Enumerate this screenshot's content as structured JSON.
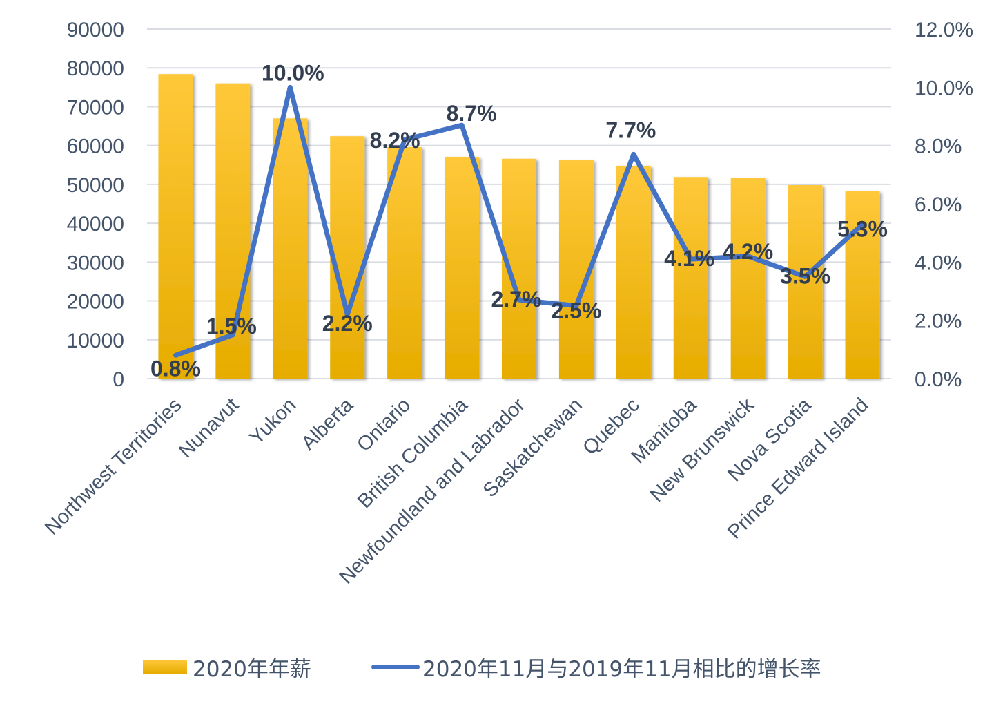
{
  "chart_data": {
    "type": "bar+line",
    "title": "",
    "xlabel": "",
    "ylabel": "",
    "categories": [
      "Northwest Territories",
      "Nunavut",
      "Yukon",
      "Alberta",
      "Ontario",
      "British Columbia",
      "Newfoundland and Labrador",
      "Saskatchewan",
      "Quebec",
      "Manitoba",
      "New Brunswick",
      "Nova Scotia",
      "Prince Edward Island"
    ],
    "series": [
      {
        "name": "2020年年薪",
        "type": "bar",
        "axis": "left",
        "color": "#ffc000",
        "values": [
          78400,
          76000,
          67000,
          62400,
          59600,
          57100,
          56600,
          56200,
          54800,
          51900,
          51600,
          49800,
          48200
        ]
      },
      {
        "name": "2020年11月与2019年11月相比的增长率",
        "type": "line",
        "axis": "right",
        "color": "#4472c4",
        "values": [
          0.8,
          1.5,
          10.0,
          2.2,
          8.2,
          8.7,
          2.7,
          2.5,
          7.7,
          4.1,
          4.2,
          3.5,
          5.3
        ],
        "labels": [
          "0.8%",
          "1.5%",
          "10.0%",
          "2.2%",
          "8.2%",
          "8.7%",
          "2.7%",
          "2.5%",
          "7.7%",
          "4.1%",
          "4.2%",
          "3.5%",
          "5.3%"
        ]
      }
    ],
    "left_axis": {
      "ylim": [
        0,
        90000
      ],
      "ticks": [
        "0",
        "10000",
        "20000",
        "30000",
        "40000",
        "50000",
        "60000",
        "70000",
        "80000",
        "90000"
      ]
    },
    "right_axis": {
      "ylim": [
        0,
        12
      ],
      "ticks": [
        "0.0%",
        "2.0%",
        "4.0%",
        "6.0%",
        "8.0%",
        "10.0%",
        "12.0%"
      ]
    },
    "grid": true,
    "legend_position": "bottom"
  },
  "legend": {
    "bar_label": "2020年年薪",
    "line_label": "2020年11月与2019年11月相比的增长率"
  },
  "colors": {
    "bar_top": "#ffc83a",
    "bar_bottom": "#e6ac00",
    "line": "#4472c4",
    "grid": "#d9dde3",
    "axis_text": "#44546a",
    "data_label": "#333f50"
  }
}
